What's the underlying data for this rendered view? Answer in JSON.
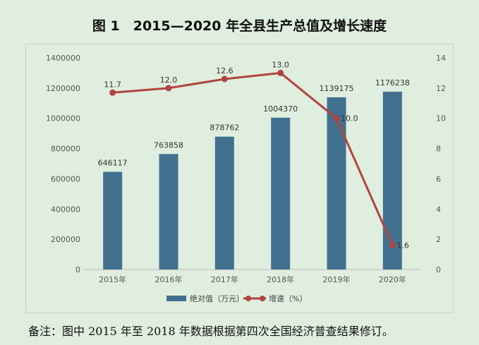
{
  "title": "图 1　2015—2020 年全县生产总值及增长速度",
  "note": "备注：图中 2015 年至 2018 年数据根据第四次全国经济普查结果修订。",
  "colors": {
    "bar": "#41718f",
    "line": "#b0443f",
    "background": "#dfeede"
  },
  "chart_data": {
    "type": "bar",
    "categories": [
      "2015年",
      "2016年",
      "2017年",
      "2018年",
      "2019年",
      "2020年"
    ],
    "series": [
      {
        "name": "绝对值（万元）",
        "type": "bar",
        "axis": "left",
        "values": [
          646117,
          763858,
          878762,
          1004370,
          1139175,
          1176238
        ],
        "labels": [
          "646117",
          "763858",
          "878762",
          "1004370",
          "1139175",
          "1176238"
        ]
      },
      {
        "name": "增速（%）",
        "type": "line",
        "axis": "right",
        "values": [
          11.7,
          12.0,
          12.6,
          13.0,
          10.0,
          1.6
        ],
        "labels": [
          "11.7",
          "12.0",
          "12.6",
          "13.0",
          "10.0",
          "1.6"
        ]
      }
    ],
    "y_left": {
      "min": 0,
      "max": 1400000,
      "step": 200000,
      "ticks": [
        "0",
        "200000",
        "400000",
        "600000",
        "800000",
        "1000000",
        "1200000",
        "1400000"
      ]
    },
    "y_right": {
      "min": 0,
      "max": 14,
      "step": 2,
      "ticks": [
        "0",
        "2",
        "4",
        "6",
        "8",
        "10",
        "12",
        "14"
      ]
    },
    "grid": false,
    "legend_position": "bottom"
  }
}
